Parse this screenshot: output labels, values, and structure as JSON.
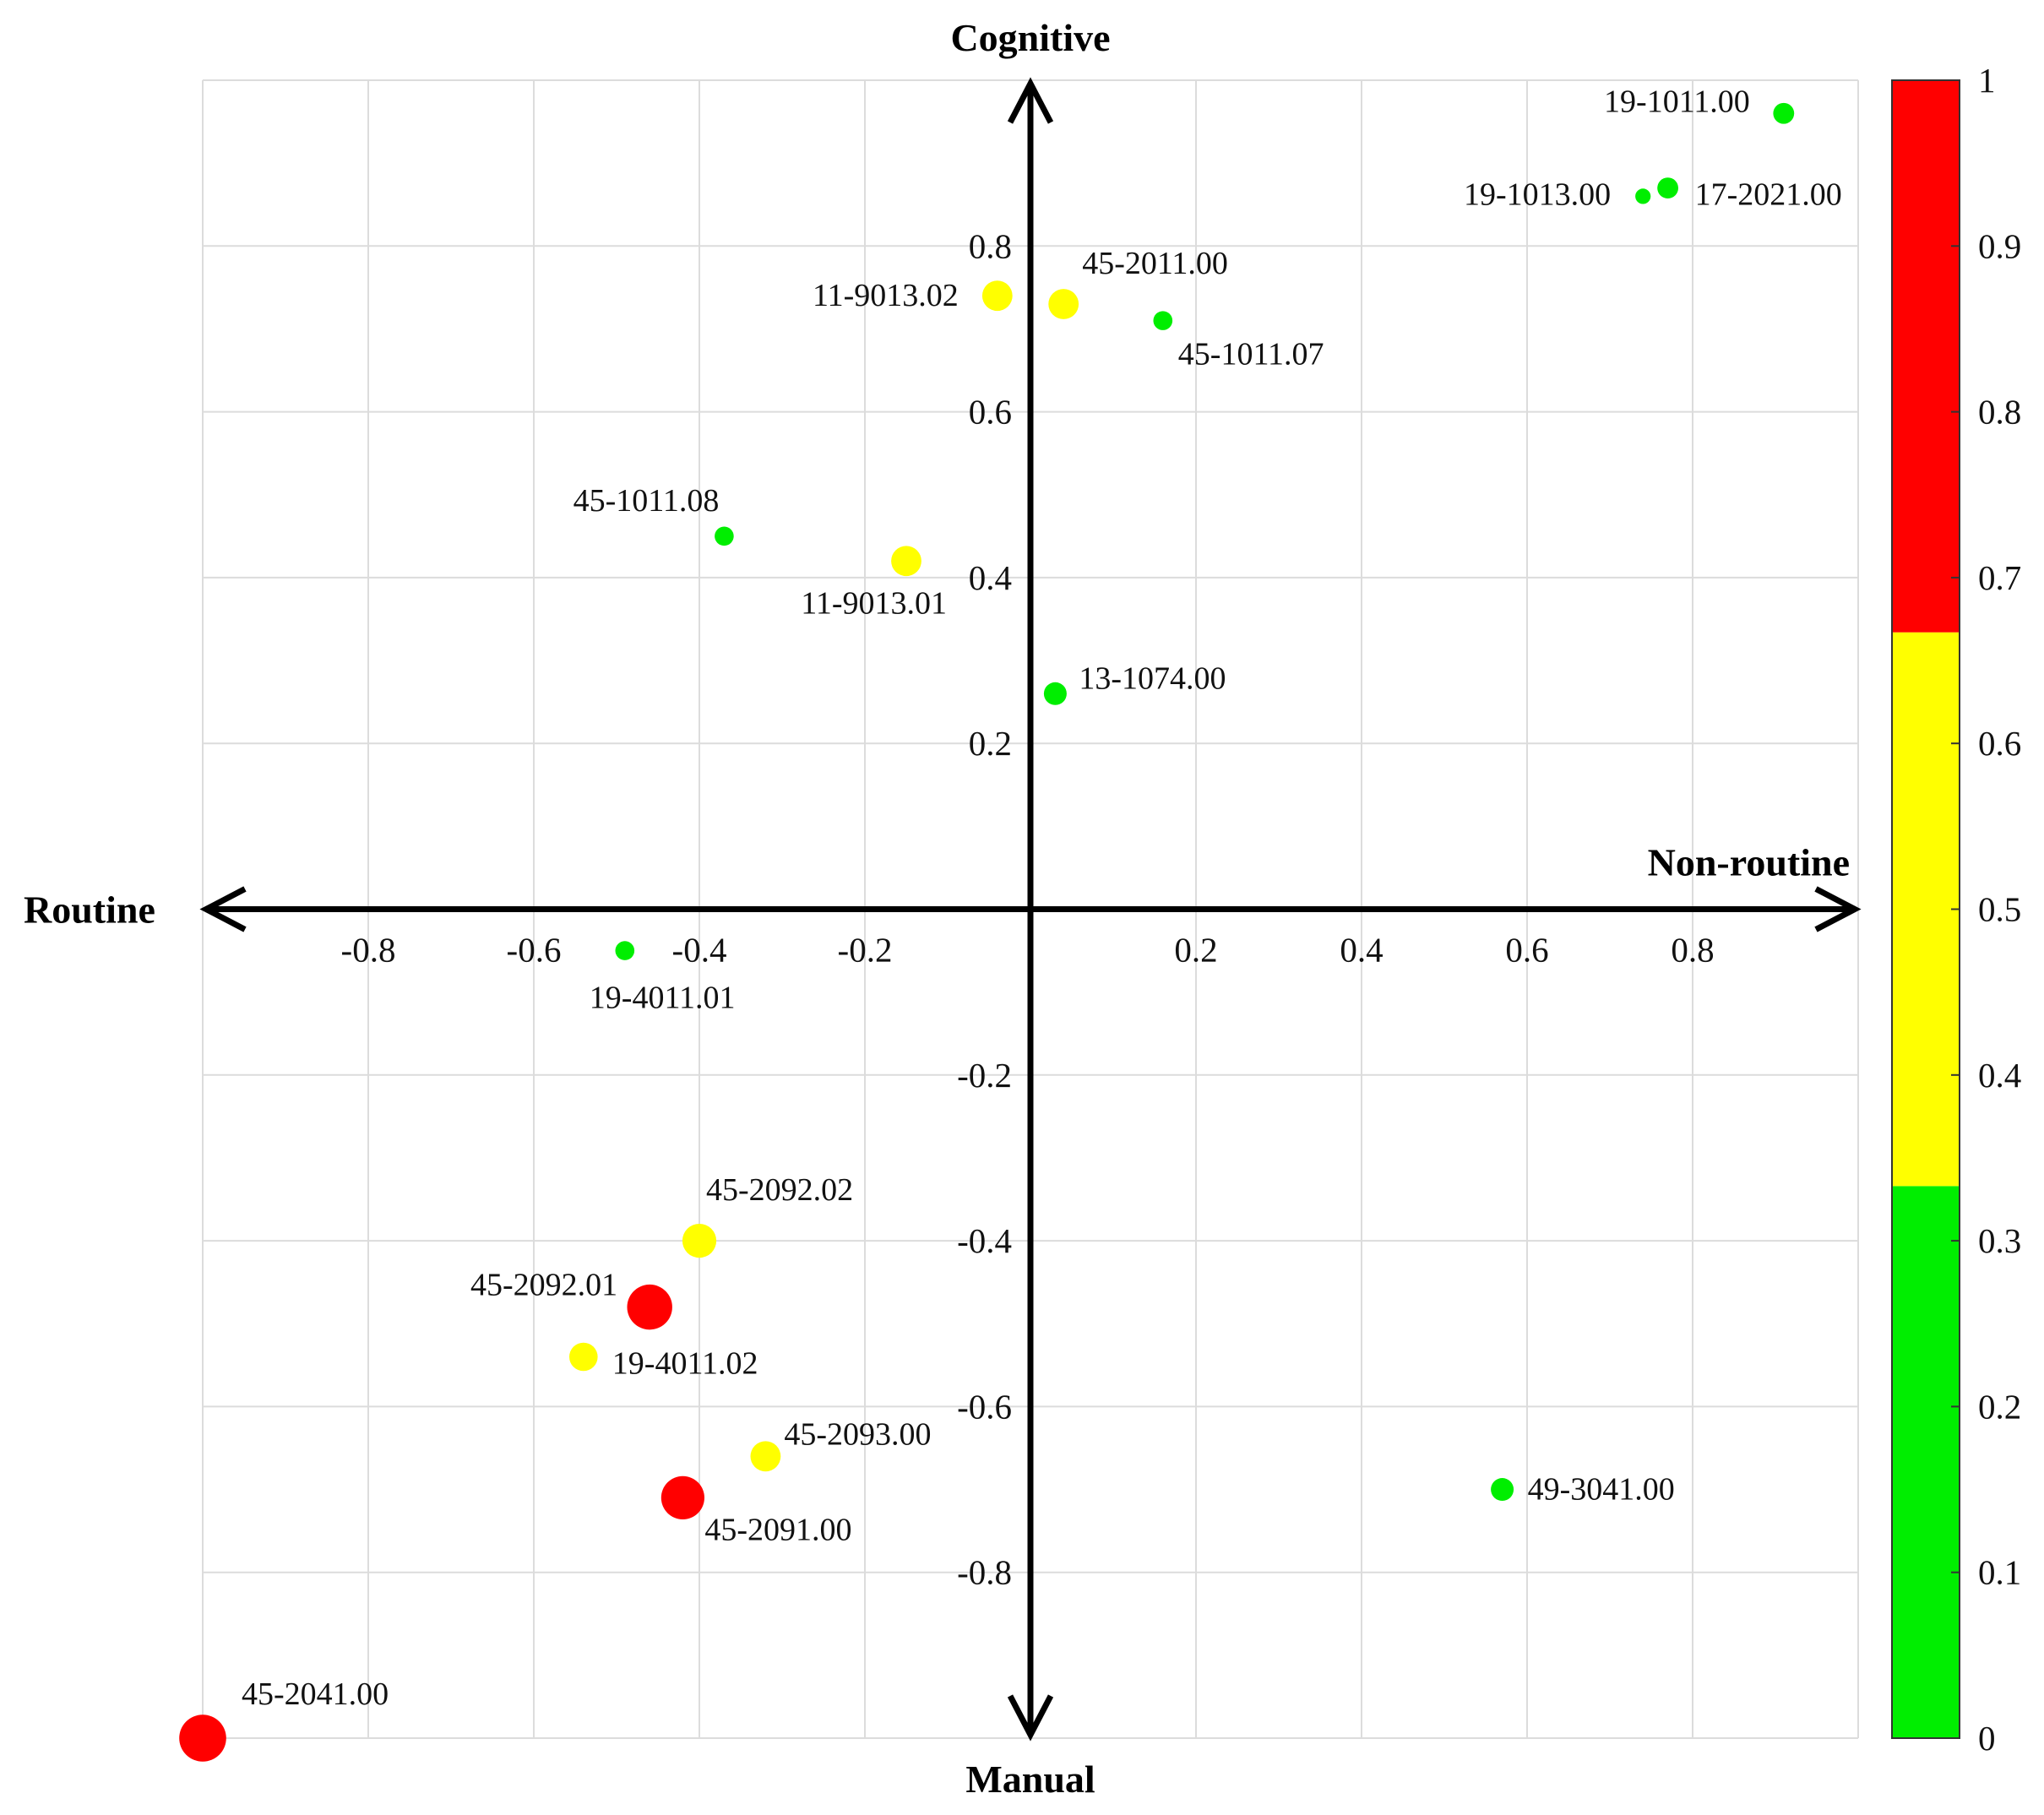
{
  "chart_data": {
    "type": "scatter",
    "axis_titles": {
      "top": "Cognitive",
      "bottom": "Manual",
      "left": "Routine",
      "right": "Non-routine"
    },
    "xlim": [
      -1,
      1
    ],
    "ylim": [
      -1,
      1
    ],
    "x_ticks": [
      "-0.8",
      "-0.6",
      "-0.4",
      "-0.2",
      "0.2",
      "0.4",
      "0.6",
      "0.8"
    ],
    "y_ticks": [
      "0.8",
      "0.6",
      "0.4",
      "0.2",
      "-0.2",
      "-0.4",
      "-0.6",
      "-0.8"
    ],
    "grid": true,
    "colorbar": {
      "range": [
        0,
        1
      ],
      "ticks": [
        "0",
        "0.1",
        "0.2",
        "0.3",
        "0.4",
        "0.5",
        "0.6",
        "0.7",
        "0.8",
        "0.9",
        "1"
      ],
      "bands": [
        {
          "from": 0,
          "to": 0.333,
          "color": "#00ee00"
        },
        {
          "from": 0.333,
          "to": 0.667,
          "color": "#ffff00"
        },
        {
          "from": 0.667,
          "to": 1,
          "color": "#ff0000"
        }
      ]
    },
    "points": [
      {
        "label": "19-1011.00",
        "x": 0.91,
        "y": 0.96,
        "value": 0.2
      },
      {
        "label": "19-1013.00",
        "x": 0.74,
        "y": 0.86,
        "value": 0.05
      },
      {
        "label": "17-2021.00",
        "x": 0.77,
        "y": 0.87,
        "value": 0.2
      },
      {
        "label": "11-9013.02",
        "x": -0.04,
        "y": 0.74,
        "value": 0.45
      },
      {
        "label": "45-2011.00",
        "x": 0.04,
        "y": 0.73,
        "value": 0.45
      },
      {
        "label": "45-1011.07",
        "x": 0.16,
        "y": 0.71,
        "value": 0.15
      },
      {
        "label": "45-1011.08",
        "x": -0.37,
        "y": 0.45,
        "value": 0.15
      },
      {
        "label": "11-9013.01",
        "x": -0.15,
        "y": 0.42,
        "value": 0.45
      },
      {
        "label": "13-1074.00",
        "x": 0.03,
        "y": 0.26,
        "value": 0.25
      },
      {
        "label": "19-4011.01",
        "x": -0.49,
        "y": -0.05,
        "value": 0.15
      },
      {
        "label": "45-2092.02",
        "x": -0.4,
        "y": -0.4,
        "value": 0.55
      },
      {
        "label": "45-2092.01",
        "x": -0.46,
        "y": -0.48,
        "value": 0.85
      },
      {
        "label": "19-4011.02",
        "x": -0.54,
        "y": -0.54,
        "value": 0.4
      },
      {
        "label": "45-2093.00",
        "x": -0.32,
        "y": -0.66,
        "value": 0.45
      },
      {
        "label": "45-2091.00",
        "x": -0.42,
        "y": -0.71,
        "value": 0.8
      },
      {
        "label": "49-3041.00",
        "x": 0.57,
        "y": -0.7,
        "value": 0.25
      },
      {
        "label": "45-2041.00",
        "x": -1.0,
        "y": -1.0,
        "value": 0.9
      }
    ]
  }
}
